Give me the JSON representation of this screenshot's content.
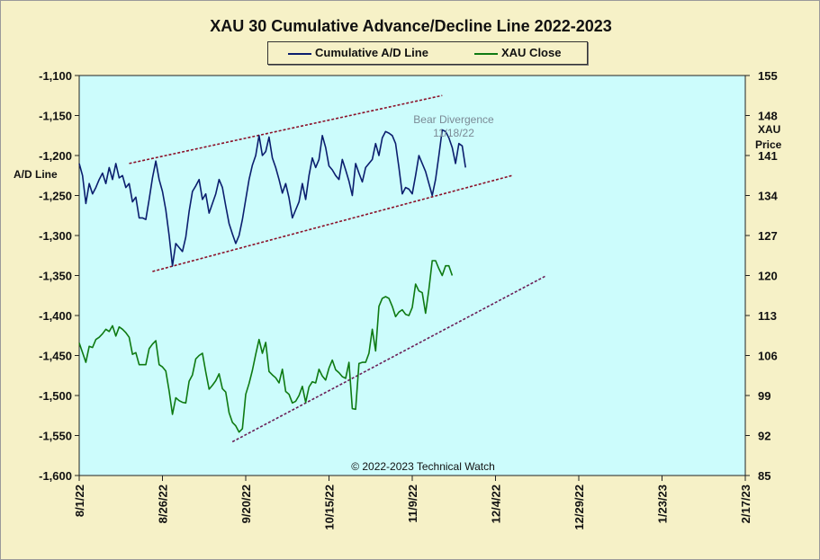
{
  "chart_data": {
    "type": "line",
    "title": "XAU 30 Cumulative Advance/Decline Line 2022-2023",
    "ylabel_left": "A/D Line",
    "ylabel_right_line1": "XAU",
    "ylabel_right_line2": "Price",
    "legend_position": "top-center",
    "grid": false,
    "x_ticks": [
      "8/1/22",
      "8/26/22",
      "9/20/22",
      "10/15/22",
      "11/9/22",
      "12/4/22",
      "12/29/22",
      "1/23/23",
      "2/17/23"
    ],
    "xlim_days": [
      0,
      200
    ],
    "ylim_left": [
      -1600,
      -1100
    ],
    "yticks_left": [
      "-1,100",
      "-1,150",
      "-1,200",
      "-1,250",
      "-1,300",
      "-1,350",
      "-1,400",
      "-1,450",
      "-1,500",
      "-1,550",
      "-1,600"
    ],
    "ylim_right": [
      85,
      155
    ],
    "yticks_right": [
      "155",
      "148",
      "141",
      "134",
      "127",
      "120",
      "113",
      "106",
      "99",
      "92",
      "85"
    ],
    "series": [
      {
        "name": "Cumulative A/D Line",
        "color": "#0b1e6e",
        "axis": "left",
        "points": [
          [
            0,
            -1210
          ],
          [
            1,
            -1225
          ],
          [
            2,
            -1260
          ],
          [
            3,
            -1235
          ],
          [
            4,
            -1248
          ],
          [
            5,
            -1240
          ],
          [
            6,
            -1230
          ],
          [
            7,
            -1222
          ],
          [
            8,
            -1235
          ],
          [
            9,
            -1215
          ],
          [
            10,
            -1230
          ],
          [
            11,
            -1210
          ],
          [
            12,
            -1228
          ],
          [
            13,
            -1225
          ],
          [
            14,
            -1240
          ],
          [
            15,
            -1235
          ],
          [
            16,
            -1258
          ],
          [
            17,
            -1252
          ],
          [
            18,
            -1278
          ],
          [
            19,
            -1278
          ],
          [
            20,
            -1280
          ],
          [
            21,
            -1255
          ],
          [
            22,
            -1228
          ],
          [
            23,
            -1207
          ],
          [
            24,
            -1230
          ],
          [
            25,
            -1245
          ],
          [
            26,
            -1268
          ],
          [
            27,
            -1300
          ],
          [
            28,
            -1338
          ],
          [
            29,
            -1310
          ],
          [
            30,
            -1315
          ],
          [
            31,
            -1320
          ],
          [
            32,
            -1302
          ],
          [
            33,
            -1270
          ],
          [
            34,
            -1245
          ],
          [
            35,
            -1238
          ],
          [
            36,
            -1230
          ],
          [
            37,
            -1255
          ],
          [
            38,
            -1248
          ],
          [
            39,
            -1272
          ],
          [
            40,
            -1260
          ],
          [
            41,
            -1248
          ],
          [
            42,
            -1230
          ],
          [
            43,
            -1240
          ],
          [
            44,
            -1263
          ],
          [
            45,
            -1285
          ],
          [
            46,
            -1298
          ],
          [
            47,
            -1310
          ],
          [
            48,
            -1300
          ],
          [
            49,
            -1280
          ],
          [
            50,
            -1255
          ],
          [
            51,
            -1230
          ],
          [
            52,
            -1212
          ],
          [
            53,
            -1200
          ],
          [
            54,
            -1175
          ],
          [
            55,
            -1200
          ],
          [
            56,
            -1195
          ],
          [
            57,
            -1177
          ],
          [
            58,
            -1203
          ],
          [
            59,
            -1215
          ],
          [
            60,
            -1230
          ],
          [
            61,
            -1247
          ],
          [
            62,
            -1235
          ],
          [
            63,
            -1253
          ],
          [
            64,
            -1278
          ],
          [
            65,
            -1268
          ],
          [
            66,
            -1258
          ],
          [
            67,
            -1235
          ],
          [
            68,
            -1255
          ],
          [
            69,
            -1225
          ],
          [
            70,
            -1203
          ],
          [
            71,
            -1215
          ],
          [
            72,
            -1205
          ],
          [
            73,
            -1175
          ],
          [
            74,
            -1190
          ],
          [
            75,
            -1213
          ],
          [
            76,
            -1218
          ],
          [
            77,
            -1225
          ],
          [
            78,
            -1230
          ],
          [
            79,
            -1205
          ],
          [
            80,
            -1218
          ],
          [
            81,
            -1232
          ],
          [
            82,
            -1250
          ],
          [
            83,
            -1210
          ],
          [
            84,
            -1222
          ],
          [
            85,
            -1233
          ],
          [
            86,
            -1215
          ],
          [
            87,
            -1210
          ],
          [
            88,
            -1205
          ],
          [
            89,
            -1185
          ],
          [
            90,
            -1200
          ],
          [
            91,
            -1178
          ],
          [
            92,
            -1170
          ],
          [
            93,
            -1172
          ],
          [
            94,
            -1175
          ],
          [
            95,
            -1185
          ],
          [
            96,
            -1215
          ],
          [
            97,
            -1248
          ],
          [
            98,
            -1240
          ],
          [
            99,
            -1242
          ],
          [
            100,
            -1248
          ],
          [
            101,
            -1225
          ],
          [
            102,
            -1200
          ],
          [
            103,
            -1210
          ],
          [
            104,
            -1220
          ],
          [
            105,
            -1235
          ],
          [
            106,
            -1250
          ],
          [
            107,
            -1230
          ],
          [
            108,
            -1200
          ],
          [
            109,
            -1168
          ],
          [
            110,
            -1170
          ],
          [
            111,
            -1178
          ],
          [
            112,
            -1190
          ],
          [
            113,
            -1210
          ],
          [
            114,
            -1185
          ],
          [
            115,
            -1188
          ],
          [
            116,
            -1215
          ]
        ]
      },
      {
        "name": "XAU Close",
        "color": "#0e7a12",
        "axis": "right",
        "points": [
          [
            0,
            108.2
          ],
          [
            1,
            106.5
          ],
          [
            2,
            104.8
          ],
          [
            3,
            107.6
          ],
          [
            4,
            107.4
          ],
          [
            5,
            108.8
          ],
          [
            6,
            109.2
          ],
          [
            7,
            109.8
          ],
          [
            8,
            110.6
          ],
          [
            9,
            110.2
          ],
          [
            10,
            111.2
          ],
          [
            11,
            109.4
          ],
          [
            12,
            111
          ],
          [
            13,
            110.6
          ],
          [
            14,
            110
          ],
          [
            15,
            109.2
          ],
          [
            16,
            106.2
          ],
          [
            17,
            106.5
          ],
          [
            18,
            104.4
          ],
          [
            19,
            104.4
          ],
          [
            20,
            104.4
          ],
          [
            21,
            107.2
          ],
          [
            22,
            108
          ],
          [
            23,
            108.6
          ],
          [
            24,
            104.4
          ],
          [
            25,
            104
          ],
          [
            26,
            103.3
          ],
          [
            27,
            99.8
          ],
          [
            28,
            95.7
          ],
          [
            29,
            98.6
          ],
          [
            30,
            98.1
          ],
          [
            31,
            97.8
          ],
          [
            32,
            97.7
          ],
          [
            33,
            101.5
          ],
          [
            34,
            102.6
          ],
          [
            35,
            105.4
          ],
          [
            36,
            106
          ],
          [
            37,
            106.4
          ],
          [
            38,
            103.1
          ],
          [
            39,
            100.1
          ],
          [
            40,
            100.8
          ],
          [
            41,
            101.6
          ],
          [
            42,
            102.8
          ],
          [
            43,
            100.2
          ],
          [
            44,
            99.6
          ],
          [
            45,
            96
          ],
          [
            46,
            94.3
          ],
          [
            47,
            93.7
          ],
          [
            48,
            92.6
          ],
          [
            49,
            93.2
          ],
          [
            50,
            99.2
          ],
          [
            51,
            101.1
          ],
          [
            52,
            103.4
          ],
          [
            53,
            106.2
          ],
          [
            54,
            108.8
          ],
          [
            55,
            106.4
          ],
          [
            56,
            108.3
          ],
          [
            57,
            103.2
          ],
          [
            58,
            102.6
          ],
          [
            59,
            102.1
          ],
          [
            60,
            101.2
          ],
          [
            61,
            103.6
          ],
          [
            62,
            99.7
          ],
          [
            63,
            99.2
          ],
          [
            64,
            97.7
          ],
          [
            65,
            98
          ],
          [
            66,
            99
          ],
          [
            67,
            100.6
          ],
          [
            68,
            97.8
          ],
          [
            69,
            100.5
          ],
          [
            70,
            101.4
          ],
          [
            71,
            101.2
          ],
          [
            72,
            103.6
          ],
          [
            73,
            102.4
          ],
          [
            74,
            101.7
          ],
          [
            75,
            103.8
          ],
          [
            76,
            105.2
          ],
          [
            77,
            103.5
          ],
          [
            78,
            103
          ],
          [
            79,
            102.3
          ],
          [
            80,
            102
          ],
          [
            81,
            104.8
          ],
          [
            82,
            96.7
          ],
          [
            83,
            96.6
          ],
          [
            84,
            104.6
          ],
          [
            85,
            104.8
          ],
          [
            86,
            104.8
          ],
          [
            87,
            106.4
          ],
          [
            88,
            110.6
          ],
          [
            89,
            106.8
          ],
          [
            90,
            114.6
          ],
          [
            91,
            116
          ],
          [
            92,
            116.3
          ],
          [
            93,
            116
          ],
          [
            94,
            114.6
          ],
          [
            95,
            112.8
          ],
          [
            96,
            113.6
          ],
          [
            97,
            114
          ],
          [
            98,
            113.2
          ],
          [
            99,
            113
          ],
          [
            100,
            114.4
          ],
          [
            101,
            118.5
          ],
          [
            102,
            117.3
          ],
          [
            103,
            117
          ],
          [
            104,
            113.4
          ],
          [
            105,
            117.6
          ],
          [
            106,
            122.6
          ],
          [
            107,
            122.6
          ],
          [
            108,
            121.2
          ],
          [
            109,
            120
          ],
          [
            110,
            121.7
          ],
          [
            111,
            121.7
          ],
          [
            112,
            120
          ]
        ]
      }
    ],
    "trendlines": [
      {
        "style": "dashed",
        "color": "#8b1028",
        "axis": "left",
        "start": [
          15,
          -1210
        ],
        "end": [
          109,
          -1125
        ]
      },
      {
        "style": "dashed",
        "color": "#8b1028",
        "axis": "left",
        "start": [
          22,
          -1345
        ],
        "end": [
          130,
          -1225
        ]
      },
      {
        "style": "dashed",
        "color": "#6a1d56",
        "axis": "right",
        "start": [
          46,
          90.9
        ],
        "end": [
          140,
          119.9
        ]
      }
    ],
    "annotations": [
      {
        "text": "Bear Divergence",
        "color": "#7b8a95"
      },
      {
        "text": "11/18/22",
        "color": "#7b8a95"
      },
      {
        "text": "© 2022-2023  Technical Watch",
        "color": "#111111"
      }
    ]
  }
}
